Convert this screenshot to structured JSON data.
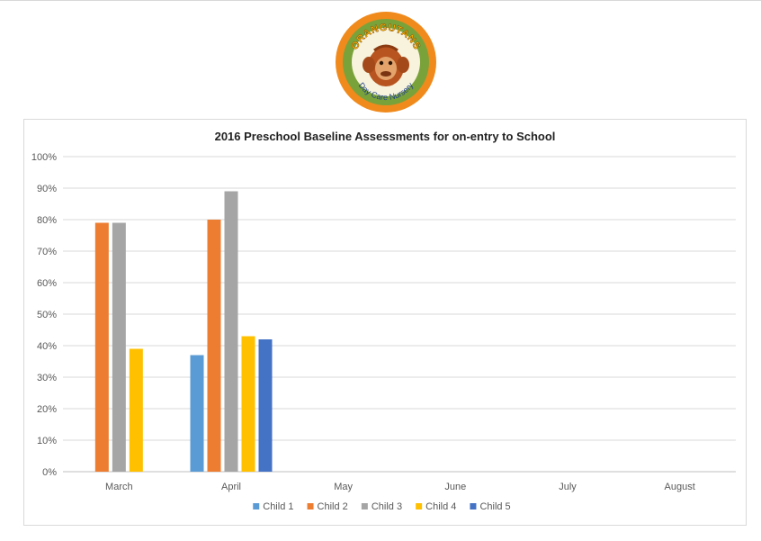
{
  "logo": {
    "arc_text": "ORANGUTANS",
    "sub_text": "Day Care Nursery",
    "colors": {
      "outer": "#f08a1c",
      "ring": "#7aa23a",
      "inner": "#f7f3dc",
      "face": "#b8541f"
    }
  },
  "chart_data": {
    "type": "bar",
    "title": "2016 Preschool Baseline Assessments for on-entry to School",
    "xlabel": "",
    "ylabel": "",
    "categories": [
      "March",
      "April",
      "May",
      "June",
      "July",
      "August"
    ],
    "ylim": [
      0,
      100
    ],
    "yticks": [
      "0%",
      "10%",
      "20%",
      "30%",
      "40%",
      "50%",
      "60%",
      "70%",
      "80%",
      "90%",
      "100%"
    ],
    "grid": true,
    "legend_position": "bottom",
    "series": [
      {
        "name": "Child 1",
        "color": "#5b9bd5",
        "values": [
          null,
          37,
          null,
          null,
          null,
          null
        ]
      },
      {
        "name": "Child 2",
        "color": "#ed7d31",
        "values": [
          79,
          80,
          null,
          null,
          null,
          null
        ]
      },
      {
        "name": "Child 3",
        "color": "#a5a5a5",
        "values": [
          79,
          89,
          null,
          null,
          null,
          null
        ]
      },
      {
        "name": "Child 4",
        "color": "#ffc000",
        "values": [
          39,
          43,
          null,
          null,
          null,
          null
        ]
      },
      {
        "name": "Child 5",
        "color": "#4472c4",
        "values": [
          null,
          42,
          null,
          null,
          null,
          null
        ]
      }
    ]
  }
}
